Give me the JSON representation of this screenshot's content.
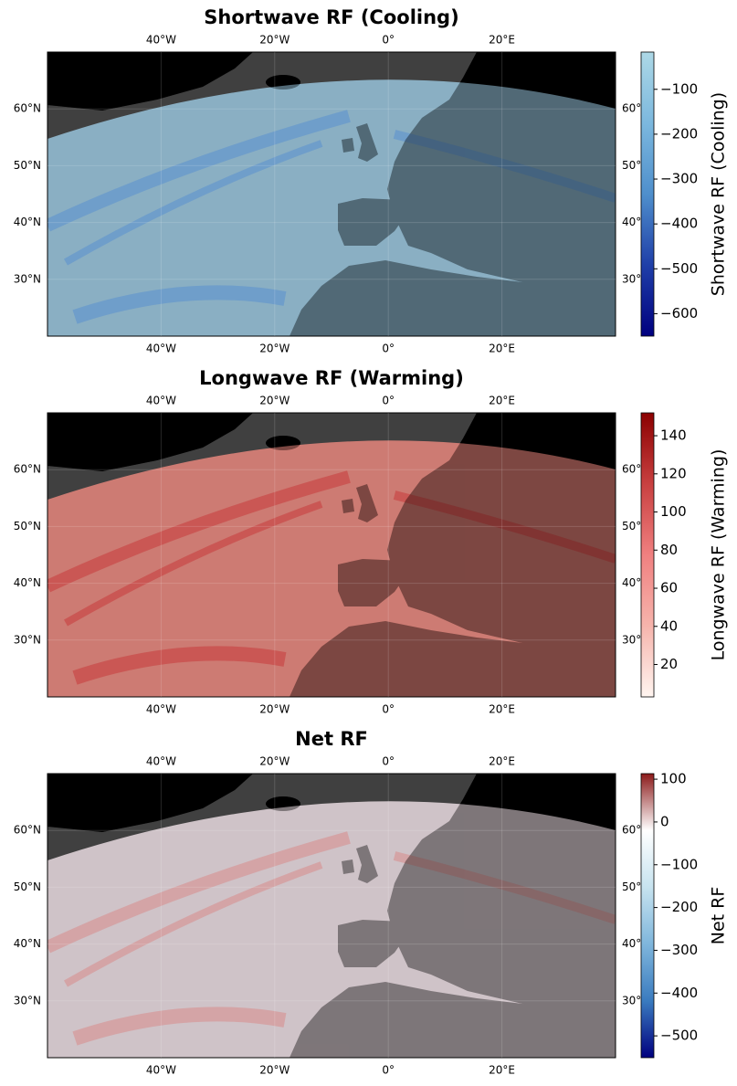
{
  "panels": [
    {
      "title": "Shortwave RF (Cooling)",
      "colorbar_label": "Shortwave RF (Cooling)",
      "clim": [
        -650,
        -17
      ],
      "cticks": [
        {
          "value": -100,
          "label": "−100"
        },
        {
          "value": -200,
          "label": "−200"
        },
        {
          "value": -300,
          "label": "−300"
        },
        {
          "value": -400,
          "label": "−400"
        },
        {
          "value": -500,
          "label": "−500"
        },
        {
          "value": -600,
          "label": "−600"
        }
      ],
      "cmap": [
        "#00007f",
        "#1f3fa8",
        "#4f8fcc",
        "#7cb8de",
        "#add8e6"
      ]
    },
    {
      "title": "Longwave RF (Warming)",
      "colorbar_label": "Longwave RF (Warming)",
      "clim": [
        3,
        152
      ],
      "cticks": [
        20,
        40,
        60,
        80,
        100,
        120,
        140
      ],
      "cmap": [
        "#fff5f0",
        "#f6b4ac",
        "#f08080",
        "#c84040",
        "#8b0000"
      ]
    },
    {
      "title": "Net RF",
      "colorbar_label": "Net RF",
      "clim": [
        -551,
        113
      ],
      "cticks": [
        {
          "value": 100,
          "label": "100"
        },
        {
          "value": 0,
          "label": "0"
        },
        {
          "value": -100,
          "label": "−100"
        },
        {
          "value": -200,
          "label": "−200"
        },
        {
          "value": -300,
          "label": "−300"
        },
        {
          "value": -400,
          "label": "−400"
        },
        {
          "value": -500,
          "label": "−500"
        }
      ],
      "cmap": [
        "#00007f",
        "#3a7bbf",
        "#7fb6dc",
        "#c7e3ef",
        "#ffffff",
        "#8b1a1a"
      ]
    }
  ],
  "lonlim": [
    -60,
    40
  ],
  "latlim": [
    20,
    70
  ],
  "lonticks": [
    {
      "value": -40,
      "label": "40°W"
    },
    {
      "value": -20,
      "label": "20°W"
    },
    {
      "value": 0,
      "label": "0°"
    },
    {
      "value": 20,
      "label": "20°E"
    }
  ],
  "latticks": [
    {
      "value": 60,
      "label": "60°N"
    },
    {
      "value": 50,
      "label": "50°N"
    },
    {
      "value": 40,
      "label": "40°N"
    },
    {
      "value": 30,
      "label": "30°N"
    }
  ],
  "grid": true
}
